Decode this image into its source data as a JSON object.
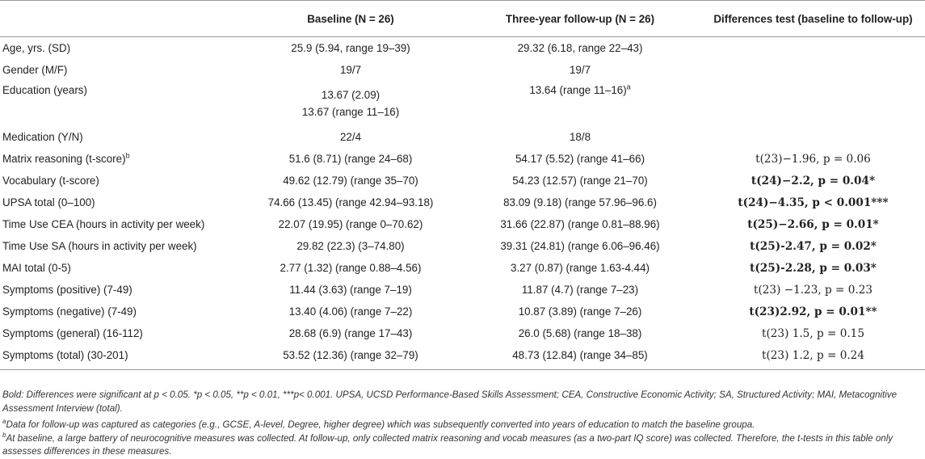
{
  "header": {
    "col0": "",
    "col1": "Baseline (N = 26)",
    "col2": "Three-year follow-up (N = 26)",
    "col3": "Differences test (baseline to follow-up)"
  },
  "rows": [
    {
      "label": "Age, yrs. (SD)",
      "baseline": "25.9 (5.94, range 19–39)",
      "followup": "29.32 (6.18, range 22–43)",
      "test": ""
    },
    {
      "label": "Gender (M/F)",
      "baseline": "19/7",
      "followup": "19/7",
      "test": ""
    },
    {
      "label": "Education (years)",
      "baseline": "13.67 (2.09)",
      "baseline2": "13.67 (range 11–16)",
      "followup": "13.64 (range 11–16)",
      "followup_sup": "a",
      "test": ""
    },
    {
      "label": "Medication (Y/N)",
      "baseline": "22/4",
      "followup": "18/8",
      "test": ""
    },
    {
      "label": "Matrix reasoning (t-score)",
      "label_sup": "b",
      "baseline": "51.6 (8.71) (range 24–68)",
      "followup": "54.17 (5.52) (range 41–66)",
      "test": "t(23)−1.96, p = 0.06"
    },
    {
      "label": "Vocabulary (t-score)",
      "baseline": "49.62 (12.79) (range 35–70)",
      "followup": "54.23 (12.57) (range 21–70)",
      "test": "t(24)−2.2, p = 0.04*"
    },
    {
      "label": "UPSA total (0–100)",
      "baseline": "74.66 (13.45) (range 42.94–93.18)",
      "followup": "83.09 (9.18) (range 57.96–96.6)",
      "test": "t(24)−4.35, p < 0.001***"
    },
    {
      "label": "Time Use CEA (hours in activity per week)",
      "baseline": "22.07 (19.95) (range 0–70.62)",
      "followup": "31.66 (22.87) (range 0.81–88.96)",
      "test": "t(25)−2.66, p = 0.01*"
    },
    {
      "label": "Time Use SA (hours in activity per week)",
      "baseline": "29.82 (22.3) (3–74.80)",
      "followup": "39.31 (24.81) (range 6.06–96.46)",
      "test": "t(25)-2.47, p = 0.02*"
    },
    {
      "label": "MAI total (0-5)",
      "baseline": "2.77 (1.32) (range 0.88–4.56)",
      "followup": "3.27 (0.87) (range 1.63-4.44)",
      "test": "t(25)-2.28, p = 0.03*"
    },
    {
      "label": "Symptoms (positive) (7-49)",
      "baseline": "11.44 (3.63) (range 7–19)",
      "followup": "11.87 (4.7) (range 7–23)",
      "test": "t(23) −1.23, p = 0.23"
    },
    {
      "label": "Symptoms (negative) (7-49)",
      "baseline": "13.40 (4.06) (range 7–22)",
      "followup": "10.87 (3.89) (range 7–26)",
      "test": "t(23)2.92, p = 0.01**"
    },
    {
      "label": "Symptoms (general) (16-112)",
      "baseline": "28.68 (6.9) (range 17–43)",
      "followup": "26.0 (5.68) (range 18–38)",
      "test": "t(23) 1.5, p = 0.15"
    },
    {
      "label": "Symptoms (total) (30-201)",
      "baseline": "53.52 (12.36) (range 32–79)",
      "followup": "48.73 (12.84) (range 34–85)",
      "test": "t(23) 1.2, p = 0.24"
    }
  ],
  "notes": {
    "n0": "Bold: Differences were significant at p  < 0.05. *p < 0.05, **p < 0.01, ***p< 0.001. UPSA, UCSD Performance-Based Skills Assessment; CEA, Constructive Economic Activity; SA, Structured Activity; MAI, Metacognitive Assessment Interview (total).",
    "n1_mark": "a",
    "n1": "Data for follow-up was captured as categories (e.g., GCSE, A-level, Degree, higher degree) which was subsequently converted into years of education to match the baseline groupa.",
    "n2_mark": "b",
    "n2": "At baseline, a large battery of neurocognitive measures was collected. At follow-up, only collected matrix reasoning and vocab measures (as a two-part IQ score) was collected. Therefore, the t-tests in this table only assesses differences in these measures."
  }
}
